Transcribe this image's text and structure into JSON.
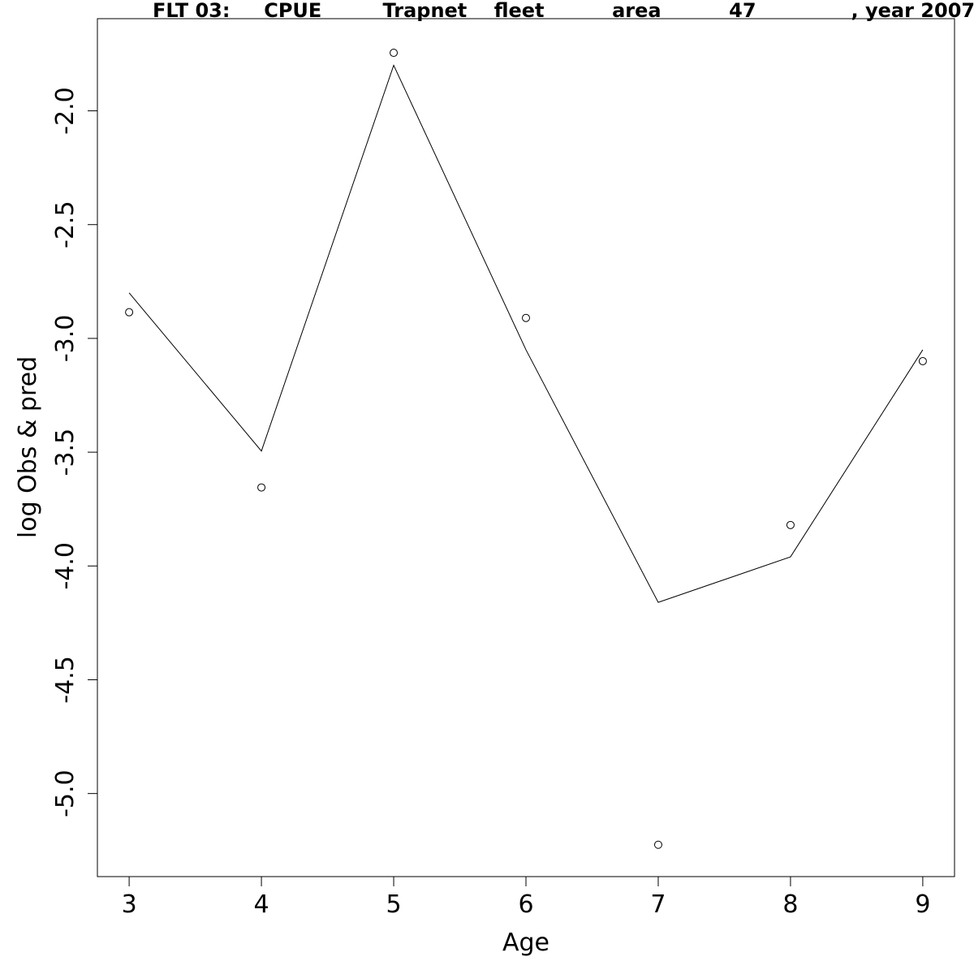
{
  "chart_data": {
    "type": "line",
    "title": "FLT 03:     CPUE         Trapnet    fleet          area          47              , year 2007",
    "xlabel": "Age",
    "ylabel": "log Obs & pred",
    "x": [
      3,
      4,
      5,
      6,
      7,
      8,
      9
    ],
    "xlim": [
      2.76,
      9.24
    ],
    "ylim": [
      -5.365,
      -1.595
    ],
    "x_ticks": [
      "3",
      "4",
      "5",
      "6",
      "7",
      "8",
      "9"
    ],
    "y_ticks": [
      "-5.0",
      "-4.5",
      "-4.0",
      "-3.5",
      "-3.0",
      "-2.5",
      "-2.0"
    ],
    "grid": false,
    "series": [
      {
        "style": "points",
        "marker": "open-circle",
        "values": [
          -2.885,
          -3.655,
          -1.745,
          -2.91,
          -5.225,
          -3.82,
          -3.1
        ]
      },
      {
        "style": "line",
        "values": [
          -2.8,
          -3.495,
          -1.8,
          -3.05,
          -4.16,
          -3.96,
          -3.05
        ]
      }
    ]
  }
}
